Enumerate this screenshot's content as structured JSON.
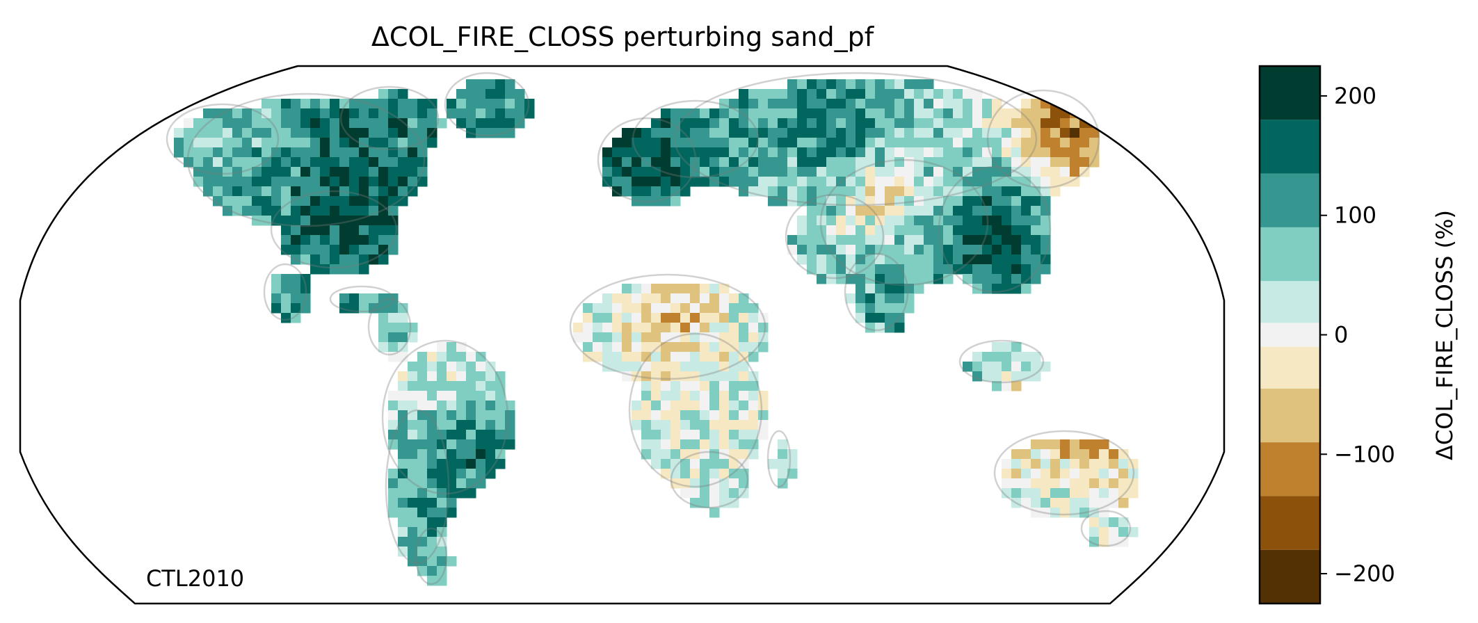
{
  "title": "ΔCOL_FIRE_CLOSS perturbing sand_pf",
  "run_label": "CTL2010",
  "projection": "Robinson",
  "colorbar": {
    "label": "ΔCOL_FIRE_CLOSS (%)",
    "levels": [
      -225,
      -180,
      -135,
      -90,
      -45,
      -10,
      10,
      45,
      90,
      135,
      180,
      225
    ],
    "colors_bottom_to_top": [
      "#543005",
      "#8c510a",
      "#bf812d",
      "#dfc27d",
      "#f6e8c3",
      "#f2f2f2",
      "#c7eae5",
      "#80cdc1",
      "#35978f",
      "#01665e",
      "#003c30"
    ],
    "ticks": [
      {
        "value": -200,
        "label": "−200"
      },
      {
        "value": -100,
        "label": "−100"
      },
      {
        "value": 0,
        "label": "0"
      },
      {
        "value": 100,
        "label": "100"
      },
      {
        "value": 200,
        "label": "200"
      }
    ]
  },
  "chart_data": {
    "type": "heatmap",
    "title": "ΔCOL_FIRE_CLOSS perturbing sand_pf",
    "variable": "ΔCOL_FIRE_CLOSS",
    "unit": "%",
    "color_range": [
      -225,
      225
    ],
    "regions": [
      {
        "name": "eastern United States",
        "value": 200
      },
      {
        "name": "Great Lakes / south-central Canada",
        "value": 160
      },
      {
        "name": "western Canada",
        "value": 80
      },
      {
        "name": "Alaska",
        "value": 40
      },
      {
        "name": "northern Europe",
        "value": 180
      },
      {
        "name": "Siberia",
        "value": 150
      },
      {
        "name": "northeast Siberia coast",
        "value": -150
      },
      {
        "name": "eastern China",
        "value": 210
      },
      {
        "name": "India",
        "value": 120
      },
      {
        "name": "Mongolia / northern China",
        "value": -40
      },
      {
        "name": "Sahel band",
        "value": -70
      },
      {
        "name": "southern Brazil",
        "value": 150
      },
      {
        "name": "Amazon",
        "value": 0
      },
      {
        "name": "southern Africa",
        "value": 20
      },
      {
        "name": "Australia",
        "value": 30
      },
      {
        "name": "northern Australia",
        "value": -100
      }
    ]
  },
  "colors": {
    "coastline": "#7a7a7a",
    "borders": "#c8c8c8",
    "frame": "#000000"
  }
}
